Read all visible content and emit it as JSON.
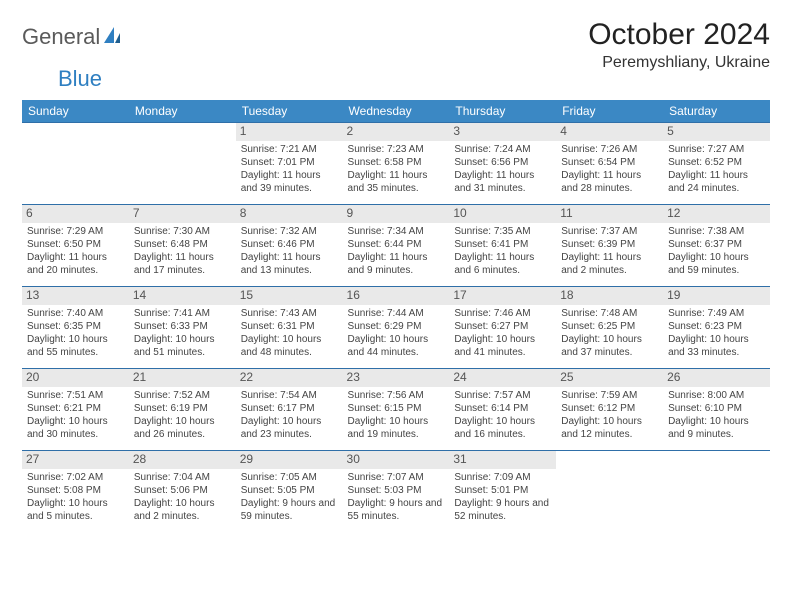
{
  "logo": {
    "part1": "General",
    "part2": "Blue"
  },
  "title": "October 2024",
  "location": "Peremyshliany, Ukraine",
  "colors": {
    "header_bg": "#3b88c4",
    "header_text": "#ffffff",
    "row_border": "#2f6fa8",
    "daynum_bg": "#e9e9e9",
    "logo_accent": "#2f7fc1",
    "logo_gray": "#5a5a5a"
  },
  "day_headers": [
    "Sunday",
    "Monday",
    "Tuesday",
    "Wednesday",
    "Thursday",
    "Friday",
    "Saturday"
  ],
  "weeks": [
    [
      {},
      {},
      {
        "n": "1",
        "sr": "Sunrise: 7:21 AM",
        "ss": "Sunset: 7:01 PM",
        "dl": "Daylight: 11 hours and 39 minutes."
      },
      {
        "n": "2",
        "sr": "Sunrise: 7:23 AM",
        "ss": "Sunset: 6:58 PM",
        "dl": "Daylight: 11 hours and 35 minutes."
      },
      {
        "n": "3",
        "sr": "Sunrise: 7:24 AM",
        "ss": "Sunset: 6:56 PM",
        "dl": "Daylight: 11 hours and 31 minutes."
      },
      {
        "n": "4",
        "sr": "Sunrise: 7:26 AM",
        "ss": "Sunset: 6:54 PM",
        "dl": "Daylight: 11 hours and 28 minutes."
      },
      {
        "n": "5",
        "sr": "Sunrise: 7:27 AM",
        "ss": "Sunset: 6:52 PM",
        "dl": "Daylight: 11 hours and 24 minutes."
      }
    ],
    [
      {
        "n": "6",
        "sr": "Sunrise: 7:29 AM",
        "ss": "Sunset: 6:50 PM",
        "dl": "Daylight: 11 hours and 20 minutes."
      },
      {
        "n": "7",
        "sr": "Sunrise: 7:30 AM",
        "ss": "Sunset: 6:48 PM",
        "dl": "Daylight: 11 hours and 17 minutes."
      },
      {
        "n": "8",
        "sr": "Sunrise: 7:32 AM",
        "ss": "Sunset: 6:46 PM",
        "dl": "Daylight: 11 hours and 13 minutes."
      },
      {
        "n": "9",
        "sr": "Sunrise: 7:34 AM",
        "ss": "Sunset: 6:44 PM",
        "dl": "Daylight: 11 hours and 9 minutes."
      },
      {
        "n": "10",
        "sr": "Sunrise: 7:35 AM",
        "ss": "Sunset: 6:41 PM",
        "dl": "Daylight: 11 hours and 6 minutes."
      },
      {
        "n": "11",
        "sr": "Sunrise: 7:37 AM",
        "ss": "Sunset: 6:39 PM",
        "dl": "Daylight: 11 hours and 2 minutes."
      },
      {
        "n": "12",
        "sr": "Sunrise: 7:38 AM",
        "ss": "Sunset: 6:37 PM",
        "dl": "Daylight: 10 hours and 59 minutes."
      }
    ],
    [
      {
        "n": "13",
        "sr": "Sunrise: 7:40 AM",
        "ss": "Sunset: 6:35 PM",
        "dl": "Daylight: 10 hours and 55 minutes."
      },
      {
        "n": "14",
        "sr": "Sunrise: 7:41 AM",
        "ss": "Sunset: 6:33 PM",
        "dl": "Daylight: 10 hours and 51 minutes."
      },
      {
        "n": "15",
        "sr": "Sunrise: 7:43 AM",
        "ss": "Sunset: 6:31 PM",
        "dl": "Daylight: 10 hours and 48 minutes."
      },
      {
        "n": "16",
        "sr": "Sunrise: 7:44 AM",
        "ss": "Sunset: 6:29 PM",
        "dl": "Daylight: 10 hours and 44 minutes."
      },
      {
        "n": "17",
        "sr": "Sunrise: 7:46 AM",
        "ss": "Sunset: 6:27 PM",
        "dl": "Daylight: 10 hours and 41 minutes."
      },
      {
        "n": "18",
        "sr": "Sunrise: 7:48 AM",
        "ss": "Sunset: 6:25 PM",
        "dl": "Daylight: 10 hours and 37 minutes."
      },
      {
        "n": "19",
        "sr": "Sunrise: 7:49 AM",
        "ss": "Sunset: 6:23 PM",
        "dl": "Daylight: 10 hours and 33 minutes."
      }
    ],
    [
      {
        "n": "20",
        "sr": "Sunrise: 7:51 AM",
        "ss": "Sunset: 6:21 PM",
        "dl": "Daylight: 10 hours and 30 minutes."
      },
      {
        "n": "21",
        "sr": "Sunrise: 7:52 AM",
        "ss": "Sunset: 6:19 PM",
        "dl": "Daylight: 10 hours and 26 minutes."
      },
      {
        "n": "22",
        "sr": "Sunrise: 7:54 AM",
        "ss": "Sunset: 6:17 PM",
        "dl": "Daylight: 10 hours and 23 minutes."
      },
      {
        "n": "23",
        "sr": "Sunrise: 7:56 AM",
        "ss": "Sunset: 6:15 PM",
        "dl": "Daylight: 10 hours and 19 minutes."
      },
      {
        "n": "24",
        "sr": "Sunrise: 7:57 AM",
        "ss": "Sunset: 6:14 PM",
        "dl": "Daylight: 10 hours and 16 minutes."
      },
      {
        "n": "25",
        "sr": "Sunrise: 7:59 AM",
        "ss": "Sunset: 6:12 PM",
        "dl": "Daylight: 10 hours and 12 minutes."
      },
      {
        "n": "26",
        "sr": "Sunrise: 8:00 AM",
        "ss": "Sunset: 6:10 PM",
        "dl": "Daylight: 10 hours and 9 minutes."
      }
    ],
    [
      {
        "n": "27",
        "sr": "Sunrise: 7:02 AM",
        "ss": "Sunset: 5:08 PM",
        "dl": "Daylight: 10 hours and 5 minutes."
      },
      {
        "n": "28",
        "sr": "Sunrise: 7:04 AM",
        "ss": "Sunset: 5:06 PM",
        "dl": "Daylight: 10 hours and 2 minutes."
      },
      {
        "n": "29",
        "sr": "Sunrise: 7:05 AM",
        "ss": "Sunset: 5:05 PM",
        "dl": "Daylight: 9 hours and 59 minutes."
      },
      {
        "n": "30",
        "sr": "Sunrise: 7:07 AM",
        "ss": "Sunset: 5:03 PM",
        "dl": "Daylight: 9 hours and 55 minutes."
      },
      {
        "n": "31",
        "sr": "Sunrise: 7:09 AM",
        "ss": "Sunset: 5:01 PM",
        "dl": "Daylight: 9 hours and 52 minutes."
      },
      {},
      {}
    ]
  ]
}
